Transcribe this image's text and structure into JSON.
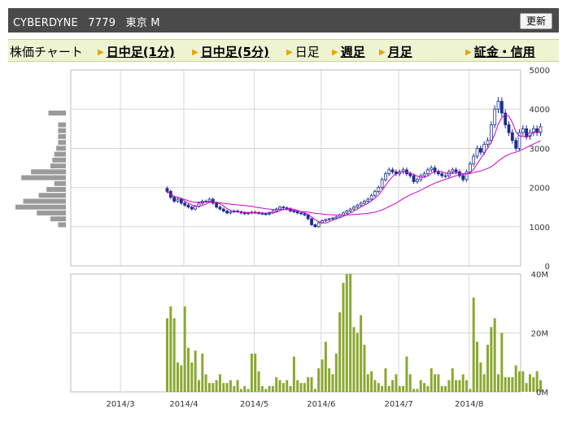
{
  "header": {
    "name": "CYBERDYNE",
    "code": "7779",
    "market": "東京 M",
    "refresh_label": "更新"
  },
  "tabs": [
    {
      "label": "株価チャート",
      "link": false
    },
    {
      "label": "日中足(1分)",
      "link": true
    },
    {
      "label": "日中足(5分)",
      "link": true
    },
    {
      "label": "日足",
      "link": false
    },
    {
      "label": "週足",
      "link": true
    },
    {
      "label": "月足",
      "link": true
    },
    {
      "label": "証金・信用",
      "link": true
    }
  ],
  "colors": {
    "up_candle": "#ffffff",
    "down_candle": "#1c2f8c",
    "ma_short": "#cc00cc",
    "ma_long": "#cc00cc",
    "volume_bar": "#8aa830",
    "volume_profile": "#9a9a9a",
    "grid": "#d6d6d6",
    "tab_arrow": "#e8a200"
  },
  "chart_data": {
    "type": "candlestick",
    "x_labels": [
      "2014/3",
      "2014/4",
      "2014/5",
      "2014/6",
      "2014/7",
      "2014/8"
    ],
    "price_axis": {
      "ticks": [
        "5000",
        "4000",
        "3000",
        "2000",
        "1000",
        "0"
      ],
      "ylim": [
        0,
        5000
      ]
    },
    "volume_axis": {
      "ticks": [
        "40M",
        "20M",
        "0M"
      ],
      "ylim": [
        0,
        40
      ]
    },
    "volume_unit": "M",
    "month_ticks_trading_day": [
      -18,
      0,
      20,
      39,
      61,
      81
    ],
    "close": [
      1900,
      1750,
      1650,
      1700,
      1600,
      1550,
      1500,
      1450,
      1520,
      1600,
      1650,
      1650,
      1700,
      1600,
      1500,
      1450,
      1400,
      1350,
      1380,
      1400,
      1380,
      1350,
      1330,
      1350,
      1370,
      1360,
      1340,
      1330,
      1320,
      1360,
      1400,
      1450,
      1500,
      1480,
      1460,
      1400,
      1380,
      1350,
      1330,
      1300,
      1200,
      1050,
      1000,
      1100,
      1150,
      1180,
      1200,
      1220,
      1250,
      1300,
      1350,
      1400,
      1450,
      1500,
      1550,
      1600,
      1650,
      1700,
      1800,
      1900,
      2000,
      2200,
      2350,
      2450,
      2400,
      2350,
      2400,
      2450,
      2350,
      2300,
      2150,
      2200,
      2300,
      2350,
      2450,
      2500,
      2400,
      2350,
      2300,
      2300,
      2400,
      2450,
      2400,
      2300,
      2200,
      2400,
      2600,
      2800,
      3000,
      2900,
      3100,
      3200,
      3600,
      4000,
      4200,
      3900,
      3600,
      3400,
      3200,
      3000,
      3400,
      3500,
      3300,
      3400,
      3500,
      3400,
      3550
    ],
    "volume": [
      25,
      29,
      25,
      10,
      9,
      29,
      15,
      10,
      14,
      4,
      13,
      6,
      3,
      3,
      4,
      6,
      3,
      3,
      4,
      2,
      4,
      1,
      2,
      1,
      13,
      13,
      7,
      2,
      1,
      2,
      2,
      5,
      4,
      3,
      4,
      2,
      12,
      4,
      3,
      3,
      5,
      5,
      1,
      8,
      11,
      17,
      8,
      6,
      13,
      27,
      37,
      40,
      40,
      22,
      20,
      26,
      16,
      6,
      7,
      4,
      3,
      2,
      8,
      2,
      4,
      6,
      2,
      2,
      12,
      6,
      1,
      1,
      4,
      3,
      2,
      8,
      6,
      6,
      2,
      2,
      4,
      8,
      4,
      4,
      6,
      4,
      1,
      32,
      17,
      10,
      6,
      16,
      22,
      25,
      6,
      20,
      5,
      5,
      5,
      9,
      7,
      7,
      3,
      6,
      5,
      7,
      4
    ],
    "ma_short_period": 5,
    "ma_long_period": 25,
    "volume_profile": [
      {
        "price": 1050,
        "volume": 40
      },
      {
        "price": 1200,
        "volume": 80
      },
      {
        "price": 1350,
        "volume": 150
      },
      {
        "price": 1500,
        "volume": 260
      },
      {
        "price": 1650,
        "volume": 220
      },
      {
        "price": 1800,
        "volume": 140
      },
      {
        "price": 1950,
        "volume": 100
      },
      {
        "price": 2100,
        "volume": 60
      },
      {
        "price": 2250,
        "volume": 230
      },
      {
        "price": 2400,
        "volume": 180
      },
      {
        "price": 2550,
        "volume": 80
      },
      {
        "price": 2700,
        "volume": 70
      },
      {
        "price": 2850,
        "volume": 60
      },
      {
        "price": 3000,
        "volume": 50
      },
      {
        "price": 3150,
        "volume": 40
      },
      {
        "price": 3300,
        "volume": 40
      },
      {
        "price": 3450,
        "volume": 40
      },
      {
        "price": 3600,
        "volume": 40
      },
      {
        "price": 3900,
        "volume": 90
      }
    ]
  }
}
